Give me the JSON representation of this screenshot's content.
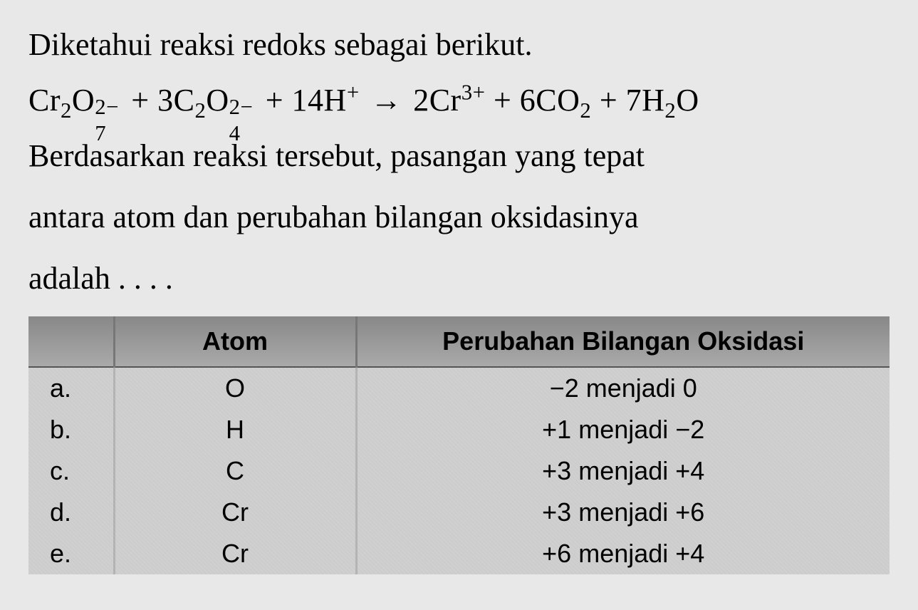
{
  "question": {
    "line1": "Diketahui reaksi redoks sebagai berikut.",
    "line3a": "Berdasarkan reaksi tersebut, pasangan yang tepat",
    "line3b": "antara atom dan perubahan bilangan oksidasinya",
    "line3c": "adalah . . . ."
  },
  "equation": {
    "terms": [
      {
        "base": "Cr",
        "sub": "2"
      },
      {
        "base": "O",
        "sub": "7",
        "sup": "2−"
      },
      {
        "plus": "+ 3C",
        "sub": "2"
      },
      {
        "base": "O",
        "sub": "4",
        "sup": "2−"
      },
      {
        "plus": "+ 14H",
        "sup": "+"
      },
      {
        "arrow": "→"
      },
      {
        "base": " 2Cr",
        "sup": "3+"
      },
      {
        "plus": "+ 6CO",
        "sub": "2"
      },
      {
        "plus": "+ 7H",
        "sub": "2"
      },
      {
        "base": "O"
      }
    ]
  },
  "table": {
    "headers": {
      "option": "",
      "atom": "Atom",
      "change": "Perubahan Bilangan Oksidasi"
    },
    "rows": [
      {
        "opt": "a.",
        "atom": "O",
        "change": "−2 menjadi 0"
      },
      {
        "opt": "b.",
        "atom": "H",
        "change": "+1 menjadi −2"
      },
      {
        "opt": "c.",
        "atom": "C",
        "change": "+3 menjadi +4"
      },
      {
        "opt": "d.",
        "atom": "Cr",
        "change": "+3 menjadi +6"
      },
      {
        "opt": "e.",
        "atom": "Cr",
        "change": "+6 menjadi +4"
      }
    ],
    "style": {
      "header_bg_from": "#888888",
      "header_bg_to": "#aaaaaa",
      "body_bg": "#d0d0d0",
      "border_color": "#777777",
      "header_fontsize": 36,
      "body_fontsize": 36,
      "header_font": "Arial",
      "body_font": "Arial"
    }
  },
  "style": {
    "page_bg": "#e8e8e8",
    "text_color": "#000000",
    "question_fontsize": 44,
    "question_font": "Times New Roman"
  }
}
